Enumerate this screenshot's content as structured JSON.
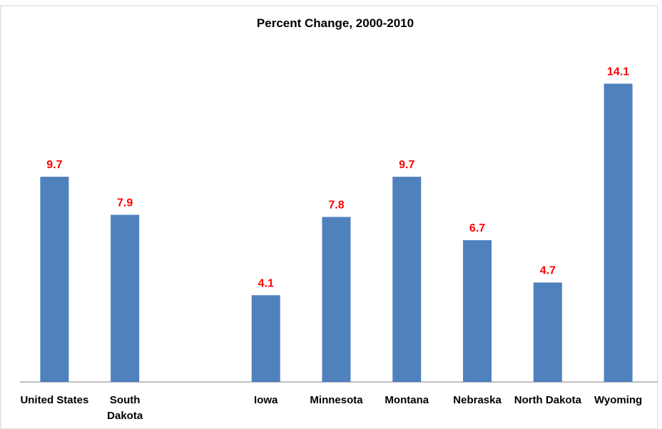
{
  "chart_data": {
    "type": "bar",
    "title": "Percent Change, 2000-2010",
    "categories": [
      "United States",
      "South Dakota",
      null,
      "Iowa",
      "Minnesota",
      "Montana",
      "Nebraska",
      "North Dakota",
      "Wyoming"
    ],
    "values": [
      9.7,
      7.9,
      null,
      4.1,
      7.8,
      9.7,
      6.7,
      4.7,
      14.1
    ],
    "color": "#4f81bd",
    "label_color": "#ff0000",
    "ylim": [
      0,
      16
    ]
  }
}
